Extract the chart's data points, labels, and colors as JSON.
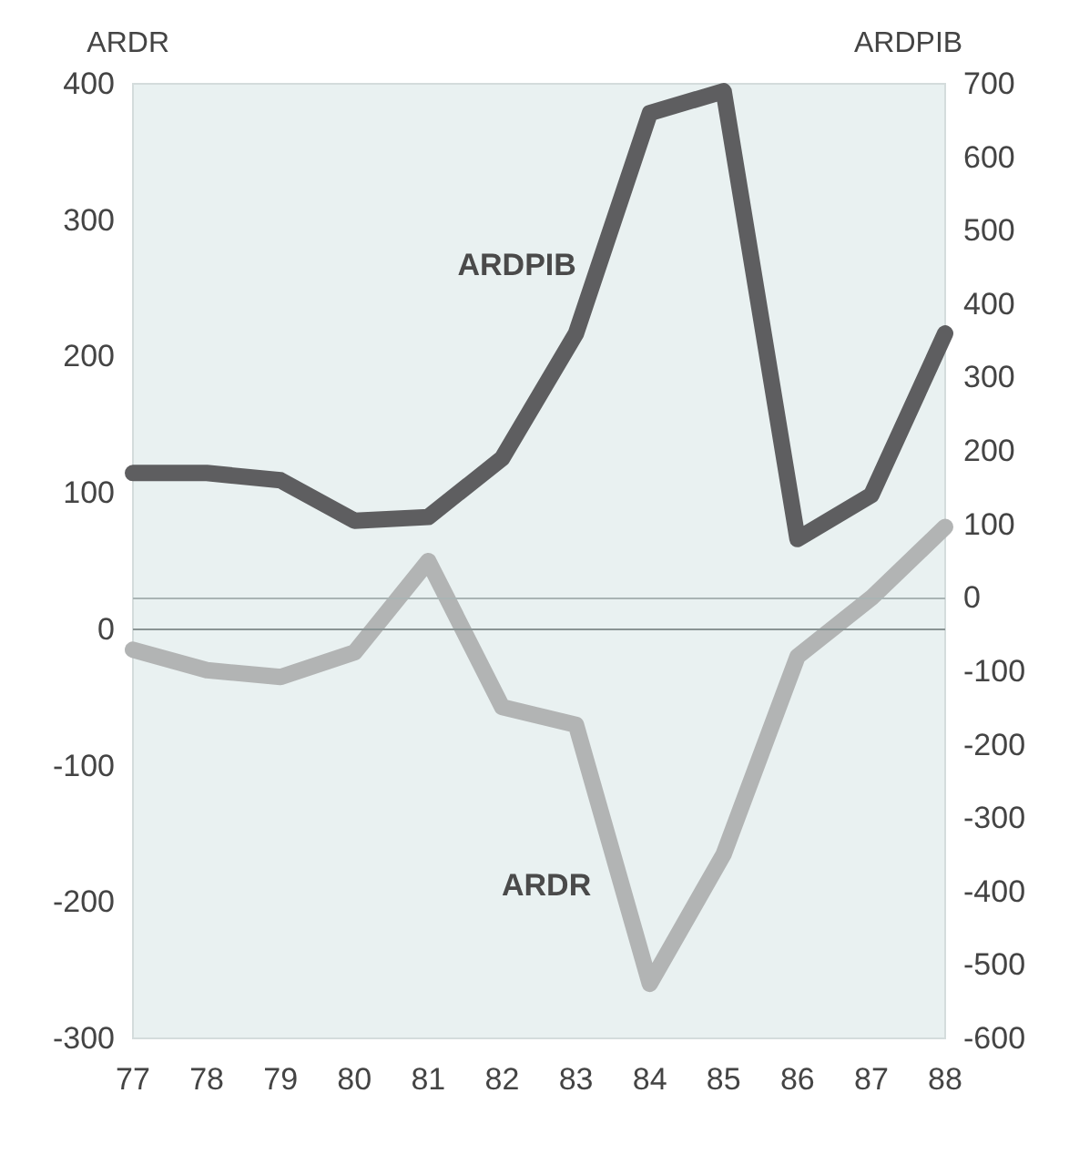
{
  "chart_data": {
    "type": "line",
    "ylabel": "ARDR",
    "y2label": "ARDPIB",
    "categories": [
      "77",
      "78",
      "79",
      "80",
      "81",
      "82",
      "83",
      "84",
      "85",
      "86",
      "87",
      "88"
    ],
    "series": [
      {
        "name": "ARDPIB",
        "color": "#5e5e60",
        "axis": "y2",
        "values": [
          170,
          170,
          160,
          105,
          110,
          190,
          360,
          660,
          690,
          80,
          140,
          360
        ]
      },
      {
        "name": "ARDR",
        "color": "#b2b4b4",
        "values": [
          -15,
          -30,
          -35,
          -17,
          50,
          -57,
          -70,
          -260,
          -165,
          -20,
          23,
          75
        ]
      }
    ],
    "ylim": [
      -300,
      400
    ],
    "yticks": [
      -300,
      -200,
      -100,
      0,
      100,
      200,
      300,
      400
    ],
    "y2lim": [
      -600,
      700
    ],
    "y2ticks": [
      -600,
      -500,
      -400,
      -300,
      -200,
      -100,
      0,
      100,
      200,
      300,
      400,
      500,
      600,
      700
    ],
    "ref_lines": [
      {
        "axis": "y",
        "value": 0,
        "color": "#8a9494"
      },
      {
        "axis": "y2",
        "value": 0,
        "color": "#a9b4b4"
      }
    ],
    "grid": false,
    "legend": false,
    "line_style": "solid"
  }
}
